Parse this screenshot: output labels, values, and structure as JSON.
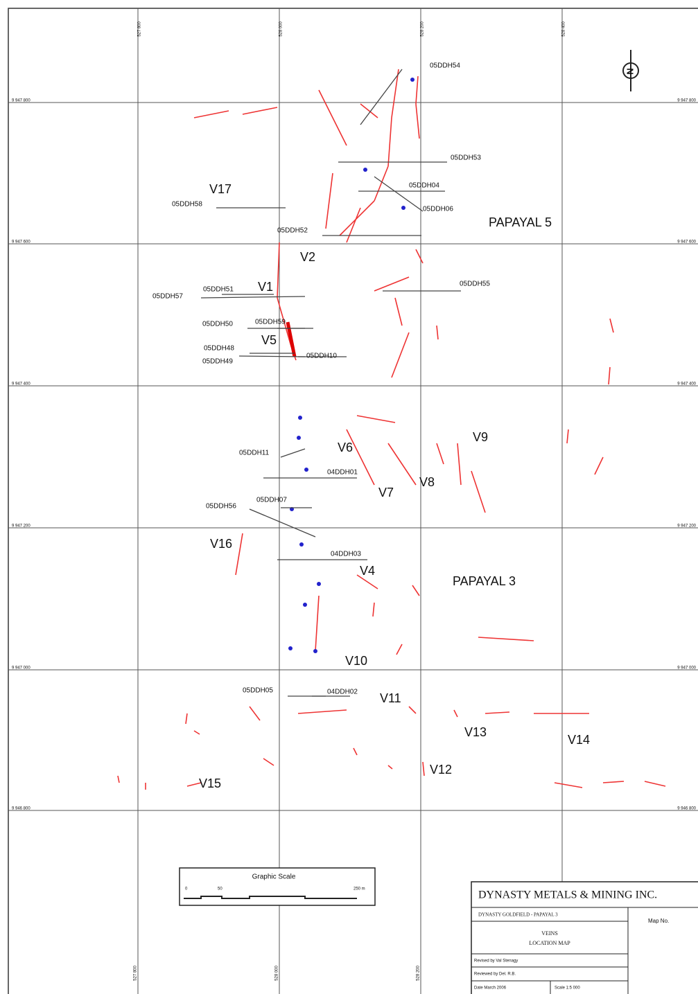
{
  "grid": {
    "x_labels_top": [
      "527 800",
      "528 000",
      "528 200",
      "528 400"
    ],
    "x_labels_bottom": [
      "527 800",
      "528 000",
      "528 200"
    ],
    "y_labels_left": [
      "9 947 800",
      "9 947 600",
      "9 947 400",
      "9 947 200",
      "9 947 000",
      "9 946 800"
    ],
    "y_labels_right": [
      "9 947 800",
      "9 947 600",
      "9 947 400",
      "9 947 200",
      "9 947 000",
      "9 946 800"
    ]
  },
  "north": "N",
  "drill_holes": [
    "05DDH54",
    "05DDH53",
    "05DDH04",
    "05DDH06",
    "05DDH58",
    "05DDH52",
    "05DDH55",
    "05DDH57",
    "05DDH51",
    "05DDH50",
    "05DDH59",
    "05DDH48",
    "05DDH49",
    "05DDH10",
    "05DDH11",
    "04DDH01",
    "05DDH07",
    "05DDH56",
    "04DDH03",
    "05DDH05",
    "04DDH02"
  ],
  "veins": [
    "V17",
    "V2",
    "V1",
    "V5",
    "V6",
    "V9",
    "V8",
    "V7",
    "V16",
    "V4",
    "V10",
    "V11",
    "V13",
    "V14",
    "V12",
    "V15"
  ],
  "areas": [
    "PAPAYAL  5",
    "PAPAYAL 3"
  ],
  "scale_bar": {
    "title": "Graphic Scale",
    "labels": [
      "0",
      "50",
      "250 m"
    ]
  },
  "title_block": {
    "company": "DYNASTY METALS & MINING INC.",
    "project": "DYNASTY GOLDFIELD - PAPAYAL 3",
    "map_no": "Map No.",
    "map_title": [
      "VEINS",
      "LOCATION MAP"
    ],
    "revised": "Revised by   Val Stenagy",
    "reviewed": "Reviewed by   Del. R.B.",
    "date": "Date  March 2006",
    "scale": "Scale   1:5 000"
  }
}
